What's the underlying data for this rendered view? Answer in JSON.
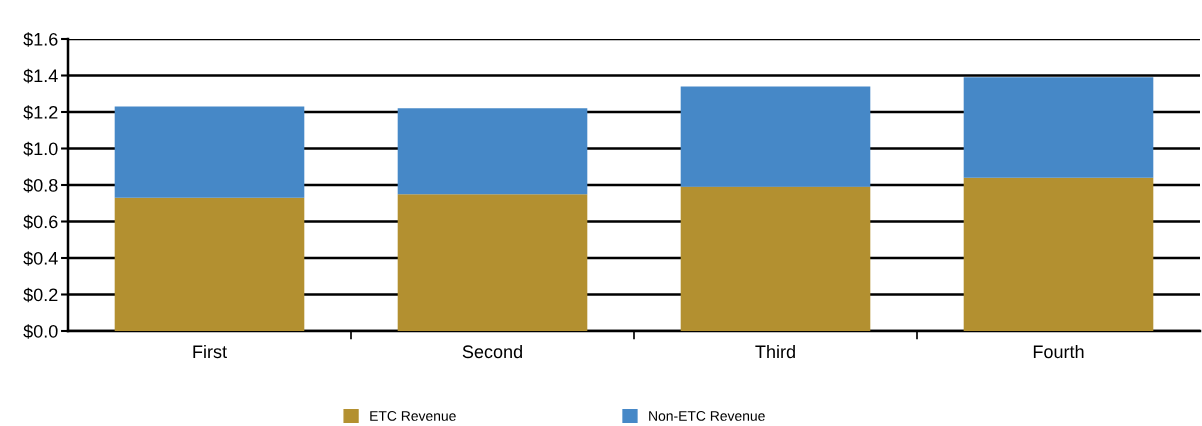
{
  "chart_data": {
    "type": "bar",
    "stacked": true,
    "categories": [
      "First",
      "Second",
      "Third",
      "Fourth"
    ],
    "series": [
      {
        "name": "ETC Revenue",
        "color": "#b39030",
        "values": [
          0.73,
          0.75,
          0.79,
          0.84
        ]
      },
      {
        "name": "Non-ETC Revenue",
        "color": "#4688c7",
        "values": [
          0.5,
          0.47,
          0.55,
          0.55
        ]
      }
    ],
    "ylim": [
      0,
      1.6
    ],
    "yticks": [
      {
        "value": 0,
        "label": "$0.0"
      },
      {
        "value": 0.2,
        "label": "$0.2"
      },
      {
        "value": 0.4,
        "label": "$0.4"
      },
      {
        "value": 0.6,
        "label": "$0.6"
      },
      {
        "value": 0.8,
        "label": "$0.8"
      },
      {
        "value": 1.0,
        "label": "$1.0"
      },
      {
        "value": 1.2,
        "label": "$1.2"
      },
      {
        "value": 1.4,
        "label": "$1.4"
      },
      {
        "value": 1.6,
        "label": "$1.6"
      }
    ],
    "grid": "y",
    "legend": "bottom"
  }
}
